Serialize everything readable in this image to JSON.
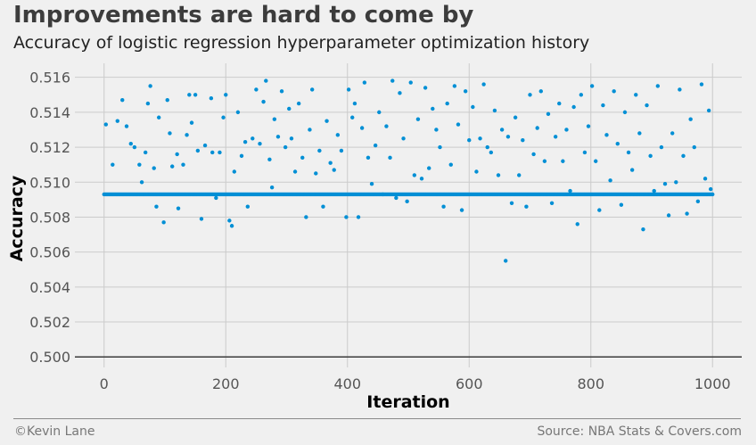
{
  "title": "Improvements are hard to come by",
  "subtitle": "Accuracy of logistic regression hyperparameter optimization history",
  "footer": {
    "credit": "©Kevin Lane",
    "source": "Source: NBA Stats & Covers.com"
  },
  "colors": {
    "background": "#f0f0f0",
    "point": "#008fd5",
    "grid": "#cbcbcb",
    "baseline": "#3c3c3c"
  },
  "chart_data": {
    "type": "scatter",
    "xlabel": "Iteration",
    "ylabel": "Accuracy",
    "xlim": [
      -48,
      1048
    ],
    "ylim": [
      0.4994,
      0.5168
    ],
    "xticks": [
      0,
      200,
      400,
      600,
      800,
      1000
    ],
    "xtick_labels": [
      "0",
      "200",
      "400",
      "600",
      "800",
      "1000"
    ],
    "yticks": [
      0.5,
      0.502,
      0.504,
      0.506,
      0.508,
      0.51,
      0.512,
      0.514,
      0.516
    ],
    "ytick_labels": [
      "0.500",
      "0.502",
      "0.504",
      "0.506",
      "0.508",
      "0.510",
      "0.512",
      "0.514",
      "0.516"
    ],
    "grid": true,
    "baseline_y": 0.5,
    "baseline_accuracy": 0.5093,
    "points": [
      [
        3,
        0.5133
      ],
      [
        14,
        0.511
      ],
      [
        22,
        0.5135
      ],
      [
        30,
        0.5147
      ],
      [
        37,
        0.5132
      ],
      [
        44,
        0.5122
      ],
      [
        50,
        0.512
      ],
      [
        58,
        0.511
      ],
      [
        62,
        0.51
      ],
      [
        68,
        0.5117
      ],
      [
        72,
        0.5145
      ],
      [
        76,
        0.5155
      ],
      [
        82,
        0.5108
      ],
      [
        86,
        0.5086
      ],
      [
        90,
        0.5137
      ],
      [
        98,
        0.5077
      ],
      [
        104,
        0.5147
      ],
      [
        108,
        0.5128
      ],
      [
        112,
        0.5109
      ],
      [
        120,
        0.5116
      ],
      [
        122,
        0.5085
      ],
      [
        130,
        0.511
      ],
      [
        136,
        0.5127
      ],
      [
        140,
        0.515
      ],
      [
        144,
        0.5134
      ],
      [
        150,
        0.515
      ],
      [
        154,
        0.5118
      ],
      [
        160,
        0.5079
      ],
      [
        166,
        0.5121
      ],
      [
        176,
        0.5148
      ],
      [
        178,
        0.5117
      ],
      [
        184,
        0.5091
      ],
      [
        190,
        0.5117
      ],
      [
        196,
        0.5137
      ],
      [
        200,
        0.515
      ],
      [
        206,
        0.5078
      ],
      [
        210,
        0.5075
      ],
      [
        214,
        0.5106
      ],
      [
        220,
        0.514
      ],
      [
        226,
        0.5115
      ],
      [
        232,
        0.5123
      ],
      [
        236,
        0.5086
      ],
      [
        244,
        0.5125
      ],
      [
        250,
        0.5153
      ],
      [
        256,
        0.5122
      ],
      [
        262,
        0.5146
      ],
      [
        266,
        0.5158
      ],
      [
        272,
        0.5113
      ],
      [
        276,
        0.5097
      ],
      [
        280,
        0.5136
      ],
      [
        286,
        0.5126
      ],
      [
        292,
        0.5152
      ],
      [
        298,
        0.512
      ],
      [
        304,
        0.5142
      ],
      [
        308,
        0.5125
      ],
      [
        314,
        0.5106
      ],
      [
        320,
        0.5145
      ],
      [
        326,
        0.5114
      ],
      [
        332,
        0.508
      ],
      [
        338,
        0.513
      ],
      [
        342,
        0.5153
      ],
      [
        348,
        0.5105
      ],
      [
        354,
        0.5118
      ],
      [
        360,
        0.5086
      ],
      [
        366,
        0.5135
      ],
      [
        372,
        0.5111
      ],
      [
        378,
        0.5107
      ],
      [
        384,
        0.5127
      ],
      [
        390,
        0.5118
      ],
      [
        398,
        0.508
      ],
      [
        402,
        0.5153
      ],
      [
        408,
        0.5137
      ],
      [
        412,
        0.5145
      ],
      [
        418,
        0.508
      ],
      [
        424,
        0.5131
      ],
      [
        428,
        0.5157
      ],
      [
        434,
        0.5114
      ],
      [
        440,
        0.5099
      ],
      [
        446,
        0.5121
      ],
      [
        452,
        0.514
      ],
      [
        458,
        0.5093
      ],
      [
        464,
        0.5132
      ],
      [
        470,
        0.5114
      ],
      [
        474,
        0.5158
      ],
      [
        480,
        0.5091
      ],
      [
        486,
        0.5151
      ],
      [
        492,
        0.5125
      ],
      [
        498,
        0.5089
      ],
      [
        504,
        0.5157
      ],
      [
        510,
        0.5104
      ],
      [
        516,
        0.5136
      ],
      [
        522,
        0.5102
      ],
      [
        528,
        0.5154
      ],
      [
        534,
        0.5108
      ],
      [
        540,
        0.5142
      ],
      [
        546,
        0.513
      ],
      [
        552,
        0.512
      ],
      [
        558,
        0.5086
      ],
      [
        564,
        0.5145
      ],
      [
        570,
        0.511
      ],
      [
        576,
        0.5155
      ],
      [
        582,
        0.5133
      ],
      [
        588,
        0.5084
      ],
      [
        594,
        0.5152
      ],
      [
        600,
        0.5124
      ],
      [
        606,
        0.5143
      ],
      [
        612,
        0.5106
      ],
      [
        618,
        0.5125
      ],
      [
        624,
        0.5156
      ],
      [
        630,
        0.512
      ],
      [
        636,
        0.5117
      ],
      [
        642,
        0.5141
      ],
      [
        648,
        0.5104
      ],
      [
        654,
        0.513
      ],
      [
        660,
        0.5055
      ],
      [
        664,
        0.5126
      ],
      [
        670,
        0.5088
      ],
      [
        676,
        0.5137
      ],
      [
        682,
        0.5104
      ],
      [
        688,
        0.5124
      ],
      [
        694,
        0.5086
      ],
      [
        700,
        0.515
      ],
      [
        706,
        0.5116
      ],
      [
        712,
        0.5131
      ],
      [
        718,
        0.5152
      ],
      [
        724,
        0.5112
      ],
      [
        730,
        0.5139
      ],
      [
        736,
        0.5088
      ],
      [
        742,
        0.5126
      ],
      [
        748,
        0.5145
      ],
      [
        754,
        0.5112
      ],
      [
        760,
        0.513
      ],
      [
        766,
        0.5095
      ],
      [
        772,
        0.5143
      ],
      [
        778,
        0.5076
      ],
      [
        784,
        0.515
      ],
      [
        790,
        0.5117
      ],
      [
        796,
        0.5132
      ],
      [
        802,
        0.5155
      ],
      [
        808,
        0.5112
      ],
      [
        814,
        0.5084
      ],
      [
        820,
        0.5144
      ],
      [
        826,
        0.5127
      ],
      [
        832,
        0.5101
      ],
      [
        838,
        0.5152
      ],
      [
        844,
        0.5122
      ],
      [
        850,
        0.5087
      ],
      [
        856,
        0.514
      ],
      [
        862,
        0.5117
      ],
      [
        868,
        0.5107
      ],
      [
        874,
        0.515
      ],
      [
        880,
        0.5128
      ],
      [
        886,
        0.5073
      ],
      [
        892,
        0.5144
      ],
      [
        898,
        0.5115
      ],
      [
        904,
        0.5095
      ],
      [
        910,
        0.5155
      ],
      [
        916,
        0.512
      ],
      [
        922,
        0.5099
      ],
      [
        928,
        0.5081
      ],
      [
        934,
        0.5128
      ],
      [
        940,
        0.51
      ],
      [
        946,
        0.5153
      ],
      [
        952,
        0.5115
      ],
      [
        958,
        0.5082
      ],
      [
        964,
        0.5136
      ],
      [
        970,
        0.512
      ],
      [
        976,
        0.5089
      ],
      [
        982,
        0.5156
      ],
      [
        988,
        0.5102
      ],
      [
        994,
        0.5141
      ],
      [
        997,
        0.5096
      ]
    ]
  }
}
